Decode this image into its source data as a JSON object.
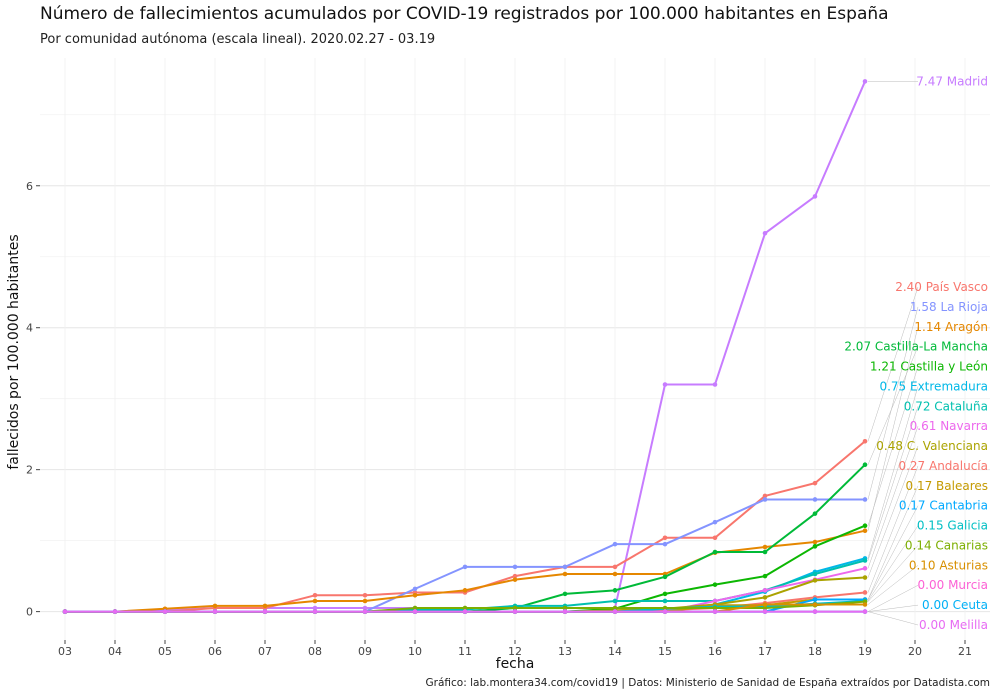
{
  "title": "Número de fallecimientos acumulados por COVID-19 registrados por 100.000 habitantes en España",
  "subtitle": "Por comunidad autónoma (escala lineal). 2020.02.27 - 03.19",
  "caption": "Gráfico: lab.montera34.com/covid19 | Datos: Ministerio de Sanidad de España extraídos por Datadista.com",
  "chart_data": {
    "type": "line",
    "xlabel": "fecha",
    "ylabel": "fallecidos por 100.000 habitantes",
    "x_ticks": [
      "03",
      "04",
      "05",
      "06",
      "07",
      "08",
      "09",
      "10",
      "11",
      "12",
      "13",
      "14",
      "15",
      "16",
      "17",
      "18",
      "19",
      "20",
      "21"
    ],
    "y_ticks": [
      "0",
      "2",
      "4",
      "6"
    ],
    "ylim": [
      -0.4,
      7.8
    ],
    "grid": true,
    "legend": "direct labels at right",
    "series": [
      {
        "name": "Madrid",
        "label": "7.47 Madrid",
        "color": "#c77cff",
        "values": [
          0,
          0,
          0.02,
          0.05,
          0.05,
          0.05,
          0.05,
          0.05,
          0.05,
          0.05,
          0.05,
          0.05,
          3.2,
          3.2,
          5.33,
          5.85,
          7.47
        ]
      },
      {
        "name": "País Vasco",
        "label": "2.40 País Vasco",
        "color": "#f8766d",
        "values": [
          0,
          0,
          0,
          0.05,
          0.05,
          0.23,
          0.23,
          0.27,
          0.27,
          0.5,
          0.63,
          0.63,
          1.04,
          1.04,
          1.63,
          1.81,
          2.4
        ]
      },
      {
        "name": "La Rioja",
        "label": "1.58 La Rioja",
        "color": "#8494ff",
        "values": [
          0,
          0,
          0,
          0,
          0,
          0,
          0,
          0.32,
          0.63,
          0.63,
          0.63,
          0.95,
          0.95,
          1.26,
          1.58,
          1.58,
          1.58
        ]
      },
      {
        "name": "Aragón",
        "label": "1.14 Aragón",
        "color": "#e58700",
        "values": [
          0,
          0,
          0.04,
          0.08,
          0.08,
          0.15,
          0.15,
          0.23,
          0.3,
          0.45,
          0.53,
          0.53,
          0.53,
          0.83,
          0.91,
          0.98,
          1.14
        ]
      },
      {
        "name": "Castilla-La Mancha",
        "label": "2.07 Castilla-La Mancha",
        "color": "#00ba38",
        "values": [
          0,
          0,
          0,
          0,
          0,
          0,
          0,
          0,
          0,
          0.05,
          0.25,
          0.3,
          0.49,
          0.84,
          0.84,
          1.38,
          2.07
        ]
      },
      {
        "name": "Castilla y León",
        "label": "1.21 Castilla y León",
        "color": "#0cb702",
        "values": [
          0,
          0,
          0,
          0,
          0,
          0,
          0,
          0,
          0,
          0,
          0,
          0.04,
          0.25,
          0.38,
          0.5,
          0.92,
          1.21
        ]
      },
      {
        "name": "Extremadura",
        "label": "0.75 Extremadura",
        "color": "#00b8e7",
        "values": [
          0,
          0,
          0,
          0,
          0,
          0,
          0,
          0,
          0,
          0,
          0,
          0,
          0,
          0.1,
          0.28,
          0.56,
          0.75
        ]
      },
      {
        "name": "Cataluña",
        "label": "0.72 Cataluña",
        "color": "#00c0af",
        "values": [
          0,
          0,
          0,
          0,
          0,
          0,
          0,
          0.03,
          0.03,
          0.08,
          0.08,
          0.15,
          0.15,
          0.15,
          0.3,
          0.53,
          0.72
        ]
      },
      {
        "name": "Navarra",
        "label": "0.61 Navarra",
        "color": "#ed68ed",
        "values": [
          0,
          0,
          0,
          0,
          0,
          0,
          0,
          0,
          0,
          0,
          0,
          0,
          0,
          0.15,
          0.3,
          0.45,
          0.61
        ]
      },
      {
        "name": "C. Valenciana",
        "label": "0.48 C. Valenciana",
        "color": "#aba300",
        "values": [
          0,
          0,
          0,
          0,
          0,
          0,
          0,
          0,
          0,
          0,
          0,
          0.02,
          0.04,
          0.1,
          0.2,
          0.44,
          0.48
        ]
      },
      {
        "name": "Andalucía",
        "label": "0.27 Andalucía",
        "color": "#f8766d",
        "values": [
          0,
          0,
          0,
          0,
          0,
          0,
          0,
          0,
          0,
          0,
          0,
          0,
          0.02,
          0.05,
          0.12,
          0.2,
          0.27
        ]
      },
      {
        "name": "Baleares",
        "label": "0.17 Baleares",
        "color": "#c49a00",
        "values": [
          0,
          0,
          0,
          0,
          0,
          0,
          0,
          0,
          0,
          0,
          0,
          0,
          0,
          0.09,
          0.09,
          0.17,
          0.17
        ]
      },
      {
        "name": "Cantabria",
        "label": "0.17 Cantabria",
        "color": "#00a9ff",
        "values": [
          0,
          0,
          0,
          0,
          0,
          0,
          0,
          0,
          0,
          0,
          0,
          0,
          0,
          0,
          0,
          0.17,
          0.17
        ]
      },
      {
        "name": "Galicia",
        "label": "0.15 Galicia",
        "color": "#00bfc4",
        "values": [
          0,
          0,
          0,
          0,
          0,
          0,
          0,
          0,
          0,
          0,
          0,
          0,
          0.04,
          0.07,
          0.07,
          0.11,
          0.15
        ]
      },
      {
        "name": "Canarias",
        "label": "0.14 Canarias",
        "color": "#7cae00",
        "values": [
          0,
          0,
          0,
          0,
          0,
          0,
          0,
          0.05,
          0.05,
          0.05,
          0.05,
          0.05,
          0.05,
          0.05,
          0.05,
          0.09,
          0.14
        ]
      },
      {
        "name": "Asturias",
        "label": "0.10 Asturias",
        "color": "#d89000",
        "values": [
          0,
          0,
          0,
          0,
          0,
          0,
          0,
          0,
          0,
          0,
          0,
          0,
          0,
          0,
          0.1,
          0.1,
          0.1
        ]
      },
      {
        "name": "Murcia",
        "label": "0.00 Murcia",
        "color": "#fc61d5",
        "values": [
          0,
          0,
          0,
          0,
          0,
          0,
          0,
          0,
          0,
          0,
          0,
          0,
          0,
          0,
          0,
          0,
          0
        ]
      },
      {
        "name": "Ceuta",
        "label": "0.00 Ceuta",
        "color": "#00b0f6",
        "values": [
          0,
          0,
          0,
          0,
          0,
          0,
          0,
          0,
          0,
          0,
          0,
          0,
          0,
          0,
          0,
          0,
          0
        ]
      },
      {
        "name": "Melilla",
        "label": "0.00 Melilla",
        "color": "#e76bf3",
        "values": [
          0,
          0,
          0,
          0,
          0,
          0,
          0,
          0,
          0,
          0,
          0,
          0,
          0,
          0,
          0,
          0,
          0
        ]
      }
    ]
  }
}
